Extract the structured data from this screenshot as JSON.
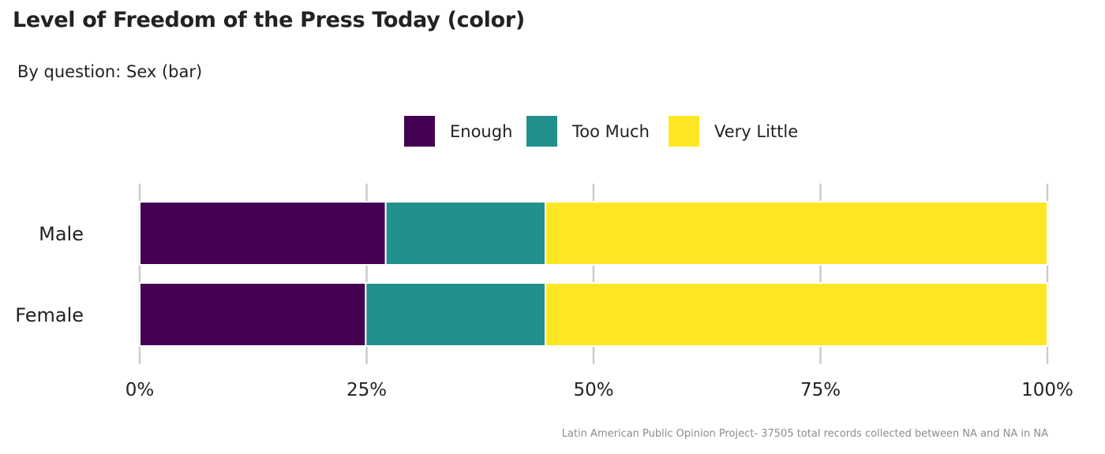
{
  "chart_data": {
    "type": "bar",
    "orientation": "horizontal",
    "stacked": "percent",
    "title": "Level of Freedom of the Press Today (color)",
    "subtitle": "By question: Sex (bar)",
    "caption": "Latin American Public Opinion Project- 37505 total records collected between NA and NA in  NA",
    "categories": [
      "Male",
      "Female"
    ],
    "series": [
      {
        "name": "Enough",
        "color": "#440154",
        "values": [
          0.271,
          0.249
        ]
      },
      {
        "name": "Too Much",
        "color": "#21908C",
        "values": [
          0.176,
          0.198
        ]
      },
      {
        "name": "Very Little",
        "color": "#FDE725",
        "values": [
          0.553,
          0.553
        ]
      }
    ],
    "x_ticks": [
      0,
      0.25,
      0.5,
      0.75,
      1.0
    ],
    "x_tick_labels": [
      "0%",
      "25%",
      "50%",
      "75%",
      "100%"
    ],
    "xlim": [
      0,
      1
    ],
    "legend_position": "top",
    "grid": "vertical major"
  }
}
